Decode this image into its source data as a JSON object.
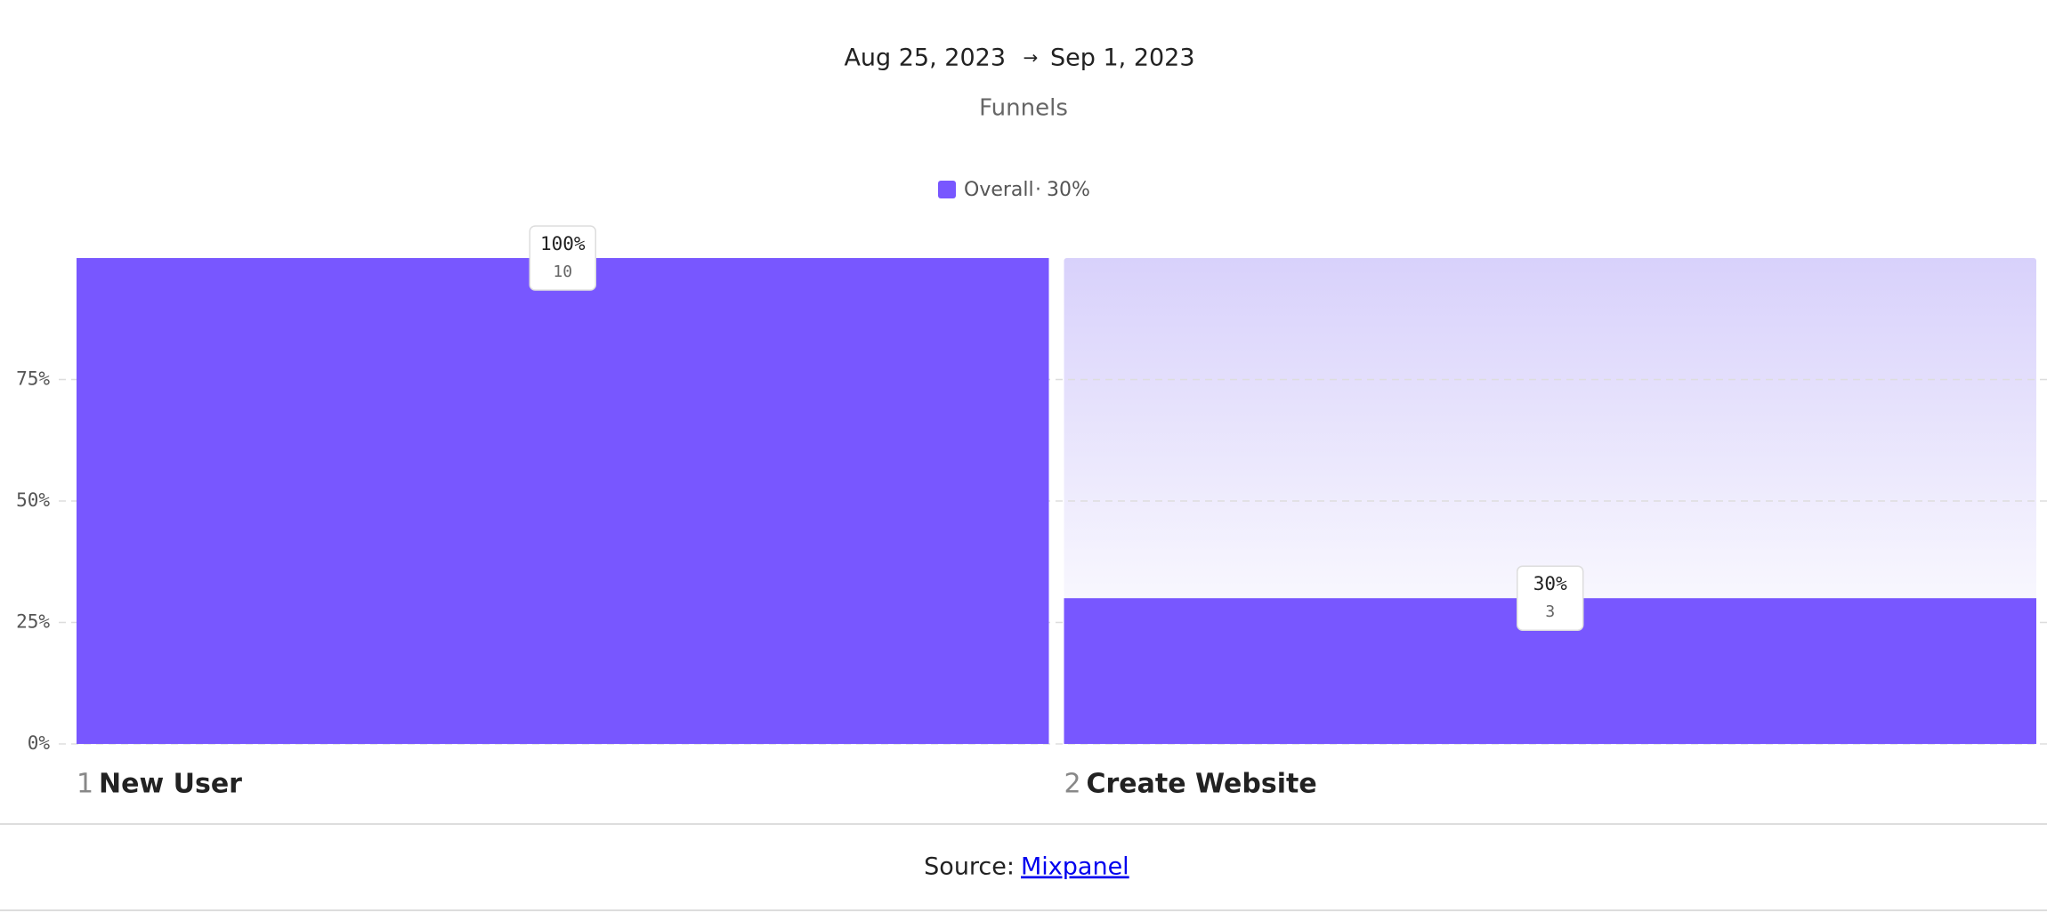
{
  "date_range": {
    "start": "Aug 25, 2023",
    "end": "Sep 1, 2023"
  },
  "chart_data": {
    "type": "bar",
    "subtitle": "Funnels",
    "categories": [
      "New User",
      "Create Website"
    ],
    "step_numbers": [
      "1",
      "2"
    ],
    "series": [
      {
        "name": "Overall",
        "summary_label": "30%",
        "color": "#7857ff",
        "values": [
          100,
          30
        ],
        "value_labels": [
          "100%",
          "30%"
        ],
        "counts": [
          10,
          3
        ]
      }
    ],
    "ylim": [
      0,
      100
    ],
    "yticks": [
      {
        "value": 0,
        "label": "0%"
      },
      {
        "value": 25,
        "label": "25%"
      },
      {
        "value": 50,
        "label": "50%"
      },
      {
        "value": 75,
        "label": "75%"
      }
    ],
    "grid": true
  },
  "source": {
    "label": "Source:",
    "link": "Mixpanel"
  }
}
